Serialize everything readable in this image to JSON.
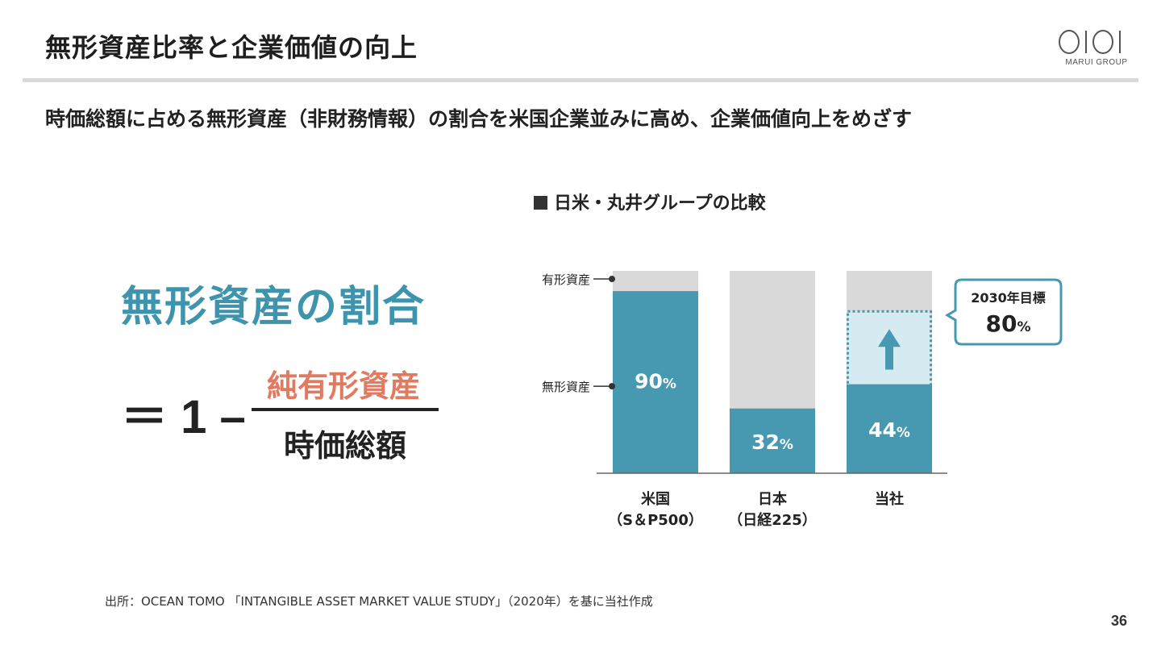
{
  "header": {
    "title": "無形資産比率と企業価値の向上",
    "logo_brand": "MARUI GROUP"
  },
  "subtitle": "時価総額に占める無形資産（非財務情報）の割合を米国企業並みに高め、企業価値向上をめざす",
  "formula": {
    "title": "無形資産の割合",
    "lhs": "＝ 1 –",
    "numerator": "純有形資産",
    "denominator": "時価総額"
  },
  "colors": {
    "teal": "#4699b0",
    "light_gray": "#d9d9d9",
    "target_fill": "#d6eaf1",
    "salmon": "#e07a60"
  },
  "chart_heading": "日米・丸井グループの比較",
  "chart_data": {
    "type": "bar",
    "stacked": true,
    "categories": [
      {
        "line1": "米国",
        "line2": "（S＆P500）"
      },
      {
        "line1": "日本",
        "line2": "（日経225）"
      },
      {
        "line1": "当社",
        "line2": ""
      }
    ],
    "series": [
      {
        "name": "無形資産",
        "values": [
          90,
          32,
          44
        ],
        "labels": [
          "90",
          "32",
          "44"
        ]
      },
      {
        "name": "有形資産",
        "values": [
          10,
          68,
          56
        ]
      }
    ],
    "unit": "%",
    "ylim": [
      0,
      100
    ],
    "target": {
      "category_index": 2,
      "value": 80,
      "label_title": "2030年目標",
      "label_value": "80",
      "label_unit": "%"
    },
    "legend_labels": {
      "tangible": "有形資産",
      "intangible": "無形資産"
    }
  },
  "source": "出所：OCEAN TOMO 「INTANGIBLE ASSET MARKET VALUE STUDY」（2020年）を基に当社作成",
  "page_number": "36"
}
